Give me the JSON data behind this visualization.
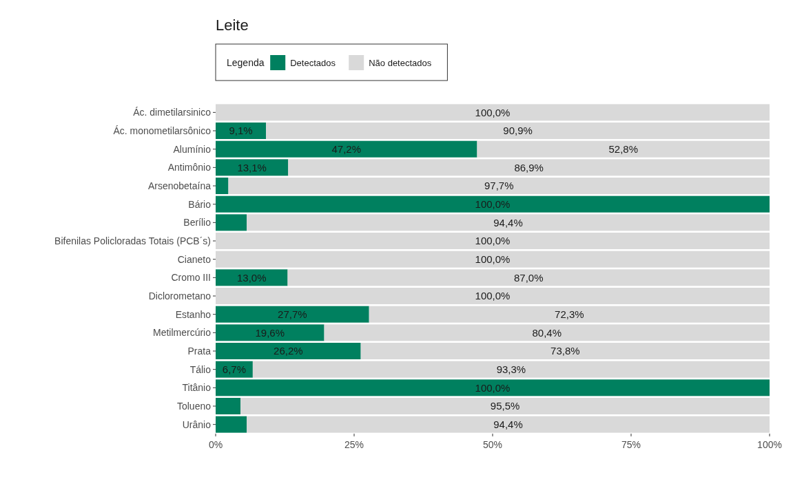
{
  "chart_data": {
    "type": "bar",
    "orientation": "horizontal",
    "stacked": true,
    "title": "Leite",
    "legend_title": "Legenda",
    "legend": "top",
    "categories": [
      "Ác. dimetilarsinico",
      "Ác. monometilarsônico",
      "Alumínio",
      "Antimônio",
      "Arsenobetaína",
      "Bário",
      "Berílio",
      "Bifenilas Policloradas Totais (PCB´s)",
      "Cianeto",
      "Cromo III",
      "Diclorometano",
      "Estanho",
      "Metilmercúrio",
      "Prata",
      "Tálio",
      "Titânio",
      "Tolueno",
      "Urânio"
    ],
    "series": [
      {
        "name": "Detectados",
        "color": "#00805f",
        "values": [
          0,
          9.1,
          47.2,
          13.1,
          2.3,
          100,
          5.6,
          0,
          0,
          13.0,
          0,
          27.7,
          19.6,
          26.2,
          6.7,
          100,
          4.5,
          5.6
        ],
        "value_labels": [
          null,
          "9,1%",
          "47,2%",
          "13,1%",
          null,
          "100,0%",
          null,
          null,
          null,
          "13,0%",
          null,
          "27,7%",
          "19,6%",
          "26,2%",
          "6,7%",
          "100,0%",
          null,
          null
        ]
      },
      {
        "name": "Não detectados",
        "color": "#d9d9d9",
        "values": [
          100,
          90.9,
          52.8,
          86.9,
          97.7,
          0,
          94.4,
          100,
          100,
          87.0,
          100,
          72.3,
          80.4,
          73.8,
          93.3,
          0,
          95.5,
          94.4
        ],
        "value_labels": [
          "100,0%",
          "90,9%",
          "52,8%",
          "86,9%",
          "97,7%",
          null,
          "94,4%",
          "100,0%",
          "100,0%",
          "87,0%",
          "100,0%",
          "72,3%",
          "80,4%",
          "73,8%",
          "93,3%",
          null,
          "95,5%",
          "94,4%"
        ]
      }
    ],
    "xlim": [
      0,
      100
    ],
    "xticks": [
      {
        "value": 0,
        "label": "0%"
      },
      {
        "value": 25,
        "label": "25%"
      },
      {
        "value": 50,
        "label": "50%"
      },
      {
        "value": 75,
        "label": "75%"
      },
      {
        "value": 100,
        "label": "100%"
      }
    ]
  }
}
